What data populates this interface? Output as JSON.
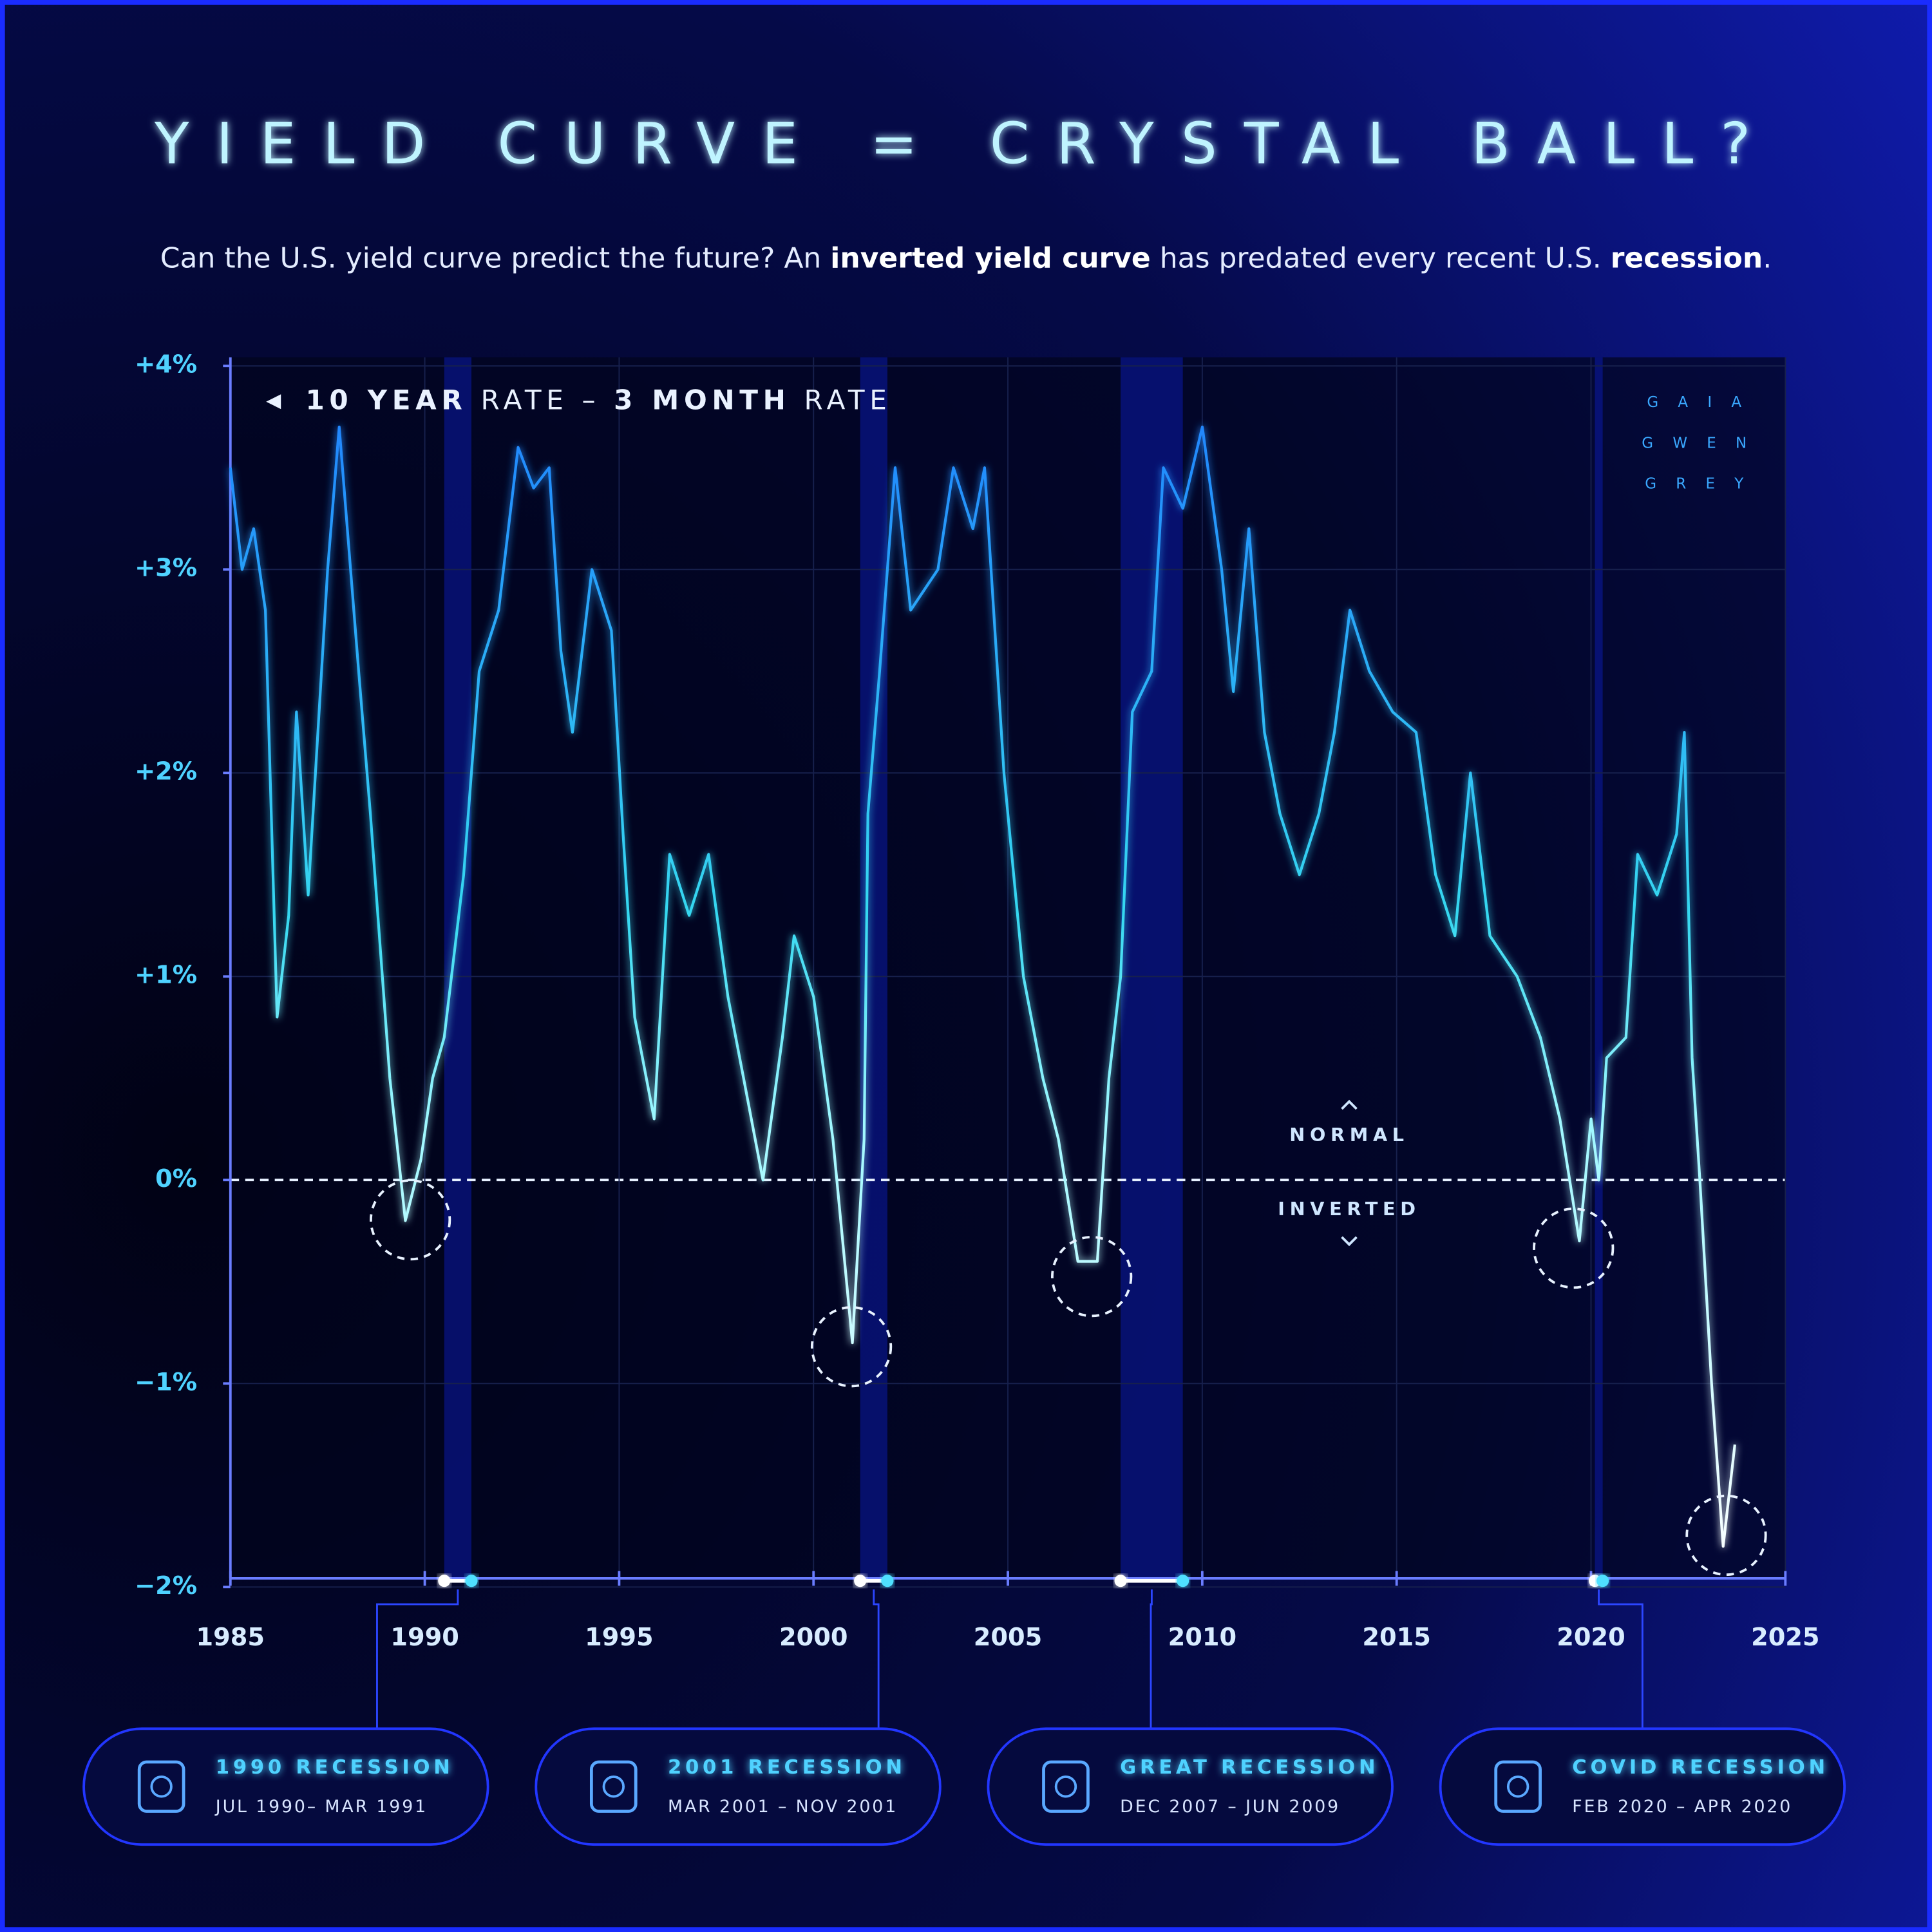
{
  "chart_data": {
    "type": "line",
    "title": "YIELD CURVE = CRYSTAL BALL?",
    "subtitle": [
      "Can the U.S. yield curve predict the future? An ",
      "inverted yield curve",
      " has predated every recent U.S. ",
      "recession",
      "."
    ],
    "series_label": [
      "10 YEAR",
      " RATE – ",
      "3 MONTH",
      " RATE"
    ],
    "logo": [
      "G A I A",
      "G W E N",
      "G R E Y"
    ],
    "annotations": {
      "normal": "NORMAL",
      "inverted": "INVERTED"
    },
    "color": "#1f7dff",
    "grid": true,
    "x": [
      1985.0,
      1985.3,
      1985.6,
      1985.9,
      1986.2,
      1986.5,
      1986.7,
      1987.0,
      1987.5,
      1987.8,
      1988.3,
      1988.6,
      1989.1,
      1989.5,
      1989.9,
      1990.2,
      1990.5,
      1991.0,
      1991.4,
      1991.9,
      1992.4,
      1992.8,
      1993.2,
      1993.5,
      1993.8,
      1994.3,
      1994.8,
      1995.1,
      1995.4,
      1995.9,
      1996.3,
      1996.8,
      1997.3,
      1997.8,
      1998.2,
      1998.7,
      1999.2,
      1999.5,
      2000.0,
      2000.5,
      2001.0,
      2001.3,
      2001.4,
      2001.7,
      2002.1,
      2002.5,
      2003.2,
      2003.6,
      2004.1,
      2004.4,
      2004.9,
      2005.4,
      2005.9,
      2006.3,
      2006.8,
      2007.3,
      2007.6,
      2007.9,
      2008.2,
      2008.7,
      2009.0,
      2009.5,
      2010.0,
      2010.5,
      2010.8,
      2011.2,
      2011.6,
      2012.0,
      2012.5,
      2013.0,
      2013.4,
      2013.8,
      2014.3,
      2014.9,
      2015.5,
      2016.0,
      2016.5,
      2016.9,
      2017.4,
      2018.1,
      2018.7,
      2019.2,
      2019.7,
      2020.0,
      2020.2,
      2020.4,
      2020.9,
      2021.2,
      2021.7,
      2022.2,
      2022.4,
      2022.6,
      2022.8,
      2023.1,
      2023.4,
      2023.7
    ],
    "values": [
      3.5,
      3.0,
      3.2,
      2.8,
      0.8,
      1.3,
      2.3,
      1.4,
      3.0,
      3.7,
      2.5,
      1.8,
      0.5,
      -0.2,
      0.1,
      0.5,
      0.7,
      1.5,
      2.5,
      2.8,
      3.6,
      3.4,
      3.5,
      2.6,
      2.2,
      3.0,
      2.7,
      1.7,
      0.8,
      0.3,
      1.6,
      1.3,
      1.6,
      0.9,
      0.5,
      0.0,
      0.7,
      1.2,
      0.9,
      0.2,
      -0.8,
      0.2,
      1.8,
      2.5,
      3.5,
      2.8,
      3.0,
      3.5,
      3.2,
      3.5,
      2.0,
      1.0,
      0.5,
      0.2,
      -0.4,
      -0.4,
      0.5,
      1.0,
      2.3,
      2.5,
      3.5,
      3.3,
      3.7,
      3.0,
      2.4,
      3.2,
      2.2,
      1.8,
      1.5,
      1.8,
      2.2,
      2.8,
      2.5,
      2.3,
      2.2,
      1.5,
      1.2,
      2.0,
      1.2,
      1.0,
      0.7,
      0.3,
      -0.3,
      0.3,
      0.0,
      0.6,
      0.7,
      1.6,
      1.4,
      1.7,
      2.2,
      0.6,
      0.0,
      -1.0,
      -1.8,
      -1.3
    ],
    "xlim": [
      1985,
      2025
    ],
    "xticks": [
      1985,
      1990,
      1995,
      2000,
      2005,
      2010,
      2015,
      2020,
      2025
    ],
    "ylim": [
      -2,
      4
    ],
    "yticks": [
      {
        "value": 4,
        "label": "+4%"
      },
      {
        "value": 3,
        "label": "+3%"
      },
      {
        "value": 2,
        "label": "+2%"
      },
      {
        "value": 1,
        "label": "+1%"
      },
      {
        "value": 0,
        "label": "0%"
      },
      {
        "value": -1,
        "label": "−1%"
      },
      {
        "value": -2,
        "label": "−2%"
      }
    ],
    "recessions": [
      {
        "label": "1990 RECESSION",
        "dates": "JUL 1990– MAR 1991",
        "start": 1990.5,
        "end": 1991.2
      },
      {
        "label": "2001 RECESSION",
        "dates": "MAR 2001 – NOV 2001",
        "start": 2001.2,
        "end": 2001.9
      },
      {
        "label": "GREAT RECESSION",
        "dates": "DEC 2007 – JUN 2009",
        "start": 2007.9,
        "end": 2009.5
      },
      {
        "label": "COVID RECESSION",
        "dates": "FEB 2020 – APR 2020",
        "start": 2020.1,
        "end": 2020.3
      }
    ]
  }
}
